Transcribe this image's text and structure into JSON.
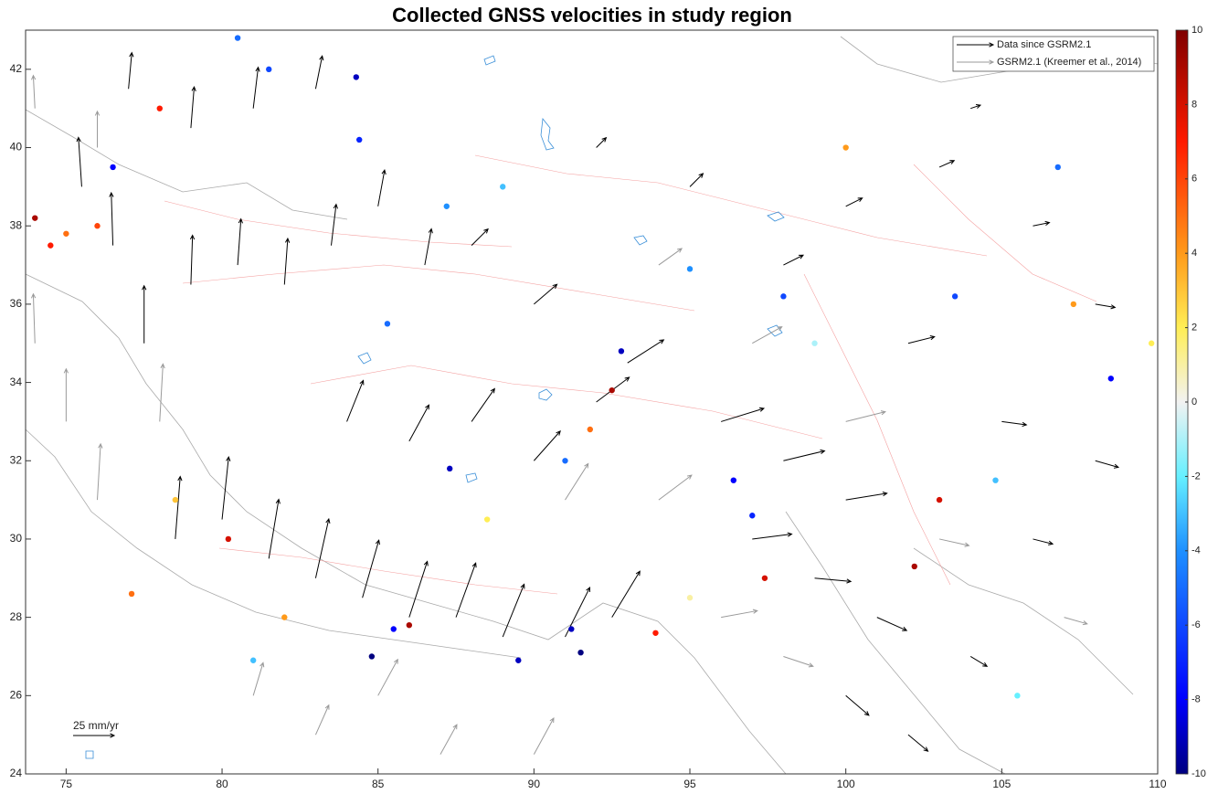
{
  "chart_data": {
    "type": "quiver",
    "title": "Collected GNSS velocities in study region",
    "xlim": [
      73.7,
      110
    ],
    "ylim": [
      24,
      43
    ],
    "xticks": [
      75,
      80,
      85,
      90,
      95,
      100,
      105,
      110
    ],
    "yticks": [
      24,
      26,
      28,
      30,
      32,
      34,
      36,
      38,
      40,
      42
    ],
    "legend": "upper right",
    "scale": {
      "label": "25 mm/yr",
      "value": 25
    },
    "series": [
      {
        "name": "Data since GSRM2.1",
        "color": "#000000",
        "x": [
          75.5,
          76.5,
          77.5,
          79,
          80.5,
          82,
          83.5,
          85,
          86.5,
          79,
          81,
          83,
          77,
          78.5,
          80,
          81.5,
          83,
          84.5,
          86,
          87.5,
          89,
          91,
          92.5,
          84,
          86,
          88,
          90,
          92,
          93,
          90,
          88,
          96,
          98,
          100,
          97,
          99,
          101,
          100,
          102,
          104,
          106,
          108,
          105,
          102,
          98,
          100,
          103,
          106,
          108,
          95,
          92,
          104
        ],
        "y": [
          39,
          37.5,
          35,
          36.5,
          37,
          36.5,
          37.5,
          38.5,
          37,
          40.5,
          41,
          41.5,
          41.5,
          30,
          30.5,
          29.5,
          29,
          28.5,
          28,
          28,
          27.5,
          27.5,
          28,
          33,
          32.5,
          33,
          32,
          33.5,
          34.5,
          36,
          37.5,
          33,
          32,
          31,
          30,
          29,
          28,
          26,
          25,
          27,
          30,
          32,
          33,
          35,
          37,
          38.5,
          39.5,
          38,
          36,
          39,
          40,
          41
        ],
        "u": [
          -2,
          -1,
          0,
          1,
          2,
          2,
          3,
          4,
          4,
          2,
          3,
          4,
          2,
          3,
          4,
          6,
          8,
          10,
          11,
          12,
          13,
          15,
          17,
          10,
          12,
          14,
          16,
          20,
          22,
          14,
          10,
          26,
          25,
          25,
          24,
          22,
          18,
          14,
          12,
          10,
          12,
          14,
          15,
          16,
          12,
          10,
          9,
          10,
          12,
          8,
          6,
          6
        ],
        "v": [
          30,
          32,
          35,
          30,
          28,
          28,
          25,
          22,
          22,
          25,
          25,
          20,
          22,
          38,
          38,
          36,
          36,
          35,
          34,
          33,
          32,
          30,
          28,
          25,
          22,
          20,
          18,
          15,
          14,
          12,
          10,
          8,
          6,
          4,
          3,
          -2,
          -8,
          -12,
          -10,
          -6,
          -3,
          -4,
          -2,
          4,
          6,
          5,
          4,
          2,
          -2,
          8,
          6,
          2
        ]
      },
      {
        "name": "GSRM2.1 (Kreemer et al., 2014)",
        "color": "#9a9a9a",
        "x": [
          74,
          75,
          76,
          78,
          81,
          83,
          85,
          87,
          90,
          91,
          94,
          96,
          98,
          103,
          107,
          97,
          94,
          74,
          76,
          100
        ],
        "y": [
          35,
          33,
          31,
          33,
          26,
          25,
          26,
          24.5,
          24.5,
          31,
          31,
          28,
          27,
          30,
          28,
          35,
          37,
          41,
          40,
          33
        ],
        "u": [
          -1,
          0,
          2,
          2,
          6,
          8,
          12,
          10,
          12,
          14,
          20,
          22,
          18,
          18,
          14,
          18,
          14,
          -1,
          0,
          24
        ],
        "v": [
          30,
          32,
          34,
          35,
          20,
          18,
          22,
          18,
          22,
          22,
          15,
          4,
          -6,
          -4,
          -4,
          10,
          10,
          20,
          22,
          6
        ]
      }
    ],
    "stations": {
      "x": [
        74,
        74.5,
        75,
        76,
        76.5,
        78,
        80.5,
        81.5,
        84.3,
        84.4,
        85.3,
        87.2,
        89,
        92.8,
        92.5,
        91.8,
        87.3,
        91,
        96.4,
        97,
        97.4,
        93.9,
        89.5,
        91.5,
        91.2,
        86,
        85.5,
        84.8,
        81,
        82,
        77.1,
        80.2,
        78.5,
        100,
        106.8,
        103.5,
        107.3,
        108.5,
        102.2,
        103,
        104.8,
        99,
        95,
        98,
        105.5,
        109.8,
        88.5,
        95
      ],
      "y": [
        38.2,
        37.5,
        37.8,
        38,
        39.5,
        41,
        42.8,
        42,
        41.8,
        40.2,
        35.5,
        38.5,
        39,
        34.8,
        33.8,
        32.8,
        31.8,
        32,
        31.5,
        30.6,
        29,
        27.6,
        26.9,
        27.1,
        27.7,
        27.8,
        27.7,
        27,
        26.9,
        28,
        28.6,
        30,
        31,
        40,
        39.5,
        36.2,
        36,
        34.1,
        29.3,
        31,
        31.5,
        35,
        36.9,
        36.2,
        26,
        35,
        30.5,
        28.5
      ],
      "values": [
        9,
        7,
        5,
        6,
        -8,
        7,
        -5,
        -6,
        -9,
        -7,
        -5,
        -4,
        -3,
        -9,
        9,
        5,
        -9,
        -5,
        -8,
        -7,
        8,
        7,
        -9,
        -10,
        -9,
        9,
        -8,
        -10,
        -3,
        4,
        5,
        8,
        3,
        4,
        -5,
        -6,
        4,
        -8,
        9,
        8,
        -3,
        -1,
        -4,
        -6,
        -2,
        2,
        2,
        1
      ]
    },
    "clim": [
      -10,
      10
    ],
    "cticks": [
      -10,
      -8,
      -6,
      -4,
      -2,
      0,
      2,
      4,
      6,
      8,
      10
    ]
  }
}
